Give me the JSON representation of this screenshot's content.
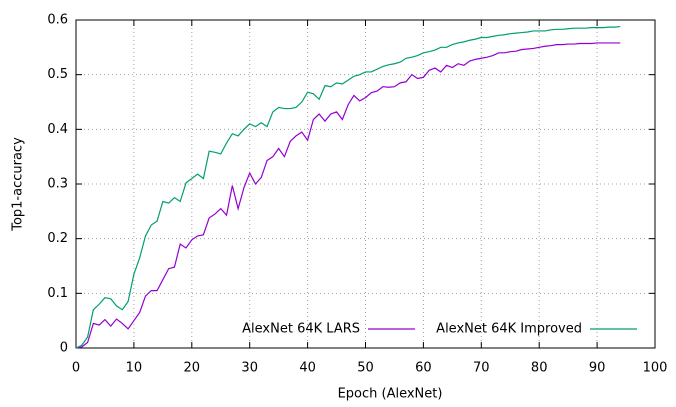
{
  "chart_data": {
    "type": "line",
    "xlabel": "Epoch (AlexNet)",
    "ylabel": "Top1-accuracy",
    "x": [
      0,
      1,
      2,
      3,
      4,
      5,
      6,
      7,
      8,
      9,
      10,
      11,
      12,
      13,
      14,
      15,
      16,
      17,
      18,
      19,
      20,
      21,
      22,
      23,
      24,
      25,
      26,
      27,
      28,
      29,
      30,
      31,
      32,
      33,
      34,
      35,
      36,
      37,
      38,
      39,
      40,
      41,
      42,
      43,
      44,
      45,
      46,
      47,
      48,
      49,
      50,
      51,
      52,
      53,
      54,
      55,
      56,
      57,
      58,
      59,
      60,
      61,
      62,
      63,
      64,
      65,
      66,
      67,
      68,
      69,
      70,
      71,
      72,
      73,
      74,
      75,
      76,
      77,
      78,
      79,
      80,
      81,
      82,
      83,
      84,
      85,
      86,
      87,
      88,
      89,
      90,
      91,
      92,
      93,
      94
    ],
    "series": [
      {
        "name": "AlexNet 64K LARS",
        "color": "#9400d3",
        "values": [
          0,
          0.002,
          0.01,
          0.045,
          0.042,
          0.052,
          0.04,
          0.053,
          0.045,
          0.035,
          0.05,
          0.065,
          0.095,
          0.105,
          0.105,
          0.125,
          0.145,
          0.148,
          0.19,
          0.183,
          0.198,
          0.205,
          0.207,
          0.238,
          0.245,
          0.255,
          0.243,
          0.297,
          0.255,
          0.293,
          0.32,
          0.3,
          0.312,
          0.343,
          0.35,
          0.365,
          0.35,
          0.378,
          0.388,
          0.395,
          0.38,
          0.418,
          0.428,
          0.415,
          0.428,
          0.432,
          0.418,
          0.445,
          0.462,
          0.452,
          0.458,
          0.467,
          0.47,
          0.478,
          0.477,
          0.478,
          0.485,
          0.487,
          0.5,
          0.493,
          0.495,
          0.508,
          0.512,
          0.505,
          0.517,
          0.513,
          0.52,
          0.517,
          0.525,
          0.528,
          0.53,
          0.532,
          0.535,
          0.54,
          0.54,
          0.542,
          0.543,
          0.546,
          0.547,
          0.548,
          0.55,
          0.552,
          0.553,
          0.555,
          0.555,
          0.556,
          0.556,
          0.557,
          0.557,
          0.557,
          0.558,
          0.558,
          0.558,
          0.558,
          0.558
        ]
      },
      {
        "name": "AlexNet 64K Improved",
        "color": "#009e73",
        "values": [
          0,
          0.005,
          0.02,
          0.07,
          0.08,
          0.092,
          0.09,
          0.077,
          0.07,
          0.085,
          0.135,
          0.165,
          0.205,
          0.225,
          0.232,
          0.268,
          0.265,
          0.275,
          0.268,
          0.302,
          0.31,
          0.318,
          0.31,
          0.36,
          0.358,
          0.355,
          0.375,
          0.392,
          0.388,
          0.4,
          0.41,
          0.405,
          0.412,
          0.405,
          0.432,
          0.44,
          0.438,
          0.438,
          0.44,
          0.45,
          0.468,
          0.465,
          0.455,
          0.48,
          0.478,
          0.485,
          0.483,
          0.49,
          0.497,
          0.5,
          0.505,
          0.505,
          0.51,
          0.515,
          0.518,
          0.52,
          0.523,
          0.53,
          0.532,
          0.535,
          0.54,
          0.542,
          0.545,
          0.55,
          0.55,
          0.555,
          0.558,
          0.56,
          0.563,
          0.565,
          0.568,
          0.568,
          0.57,
          0.572,
          0.573,
          0.575,
          0.576,
          0.577,
          0.578,
          0.58,
          0.58,
          0.58,
          0.582,
          0.583,
          0.583,
          0.584,
          0.585,
          0.585,
          0.585,
          0.586,
          0.586,
          0.586,
          0.587,
          0.587,
          0.588
        ]
      }
    ],
    "xlim": [
      0,
      100
    ],
    "xticks": [
      0,
      10,
      20,
      30,
      40,
      50,
      60,
      70,
      80,
      90,
      100
    ],
    "ylim": [
      0,
      0.6
    ],
    "yticks": [
      0,
      0.1,
      0.2,
      0.3,
      0.4,
      0.5,
      0.6
    ],
    "grid": true,
    "legend": "bottom-right"
  }
}
